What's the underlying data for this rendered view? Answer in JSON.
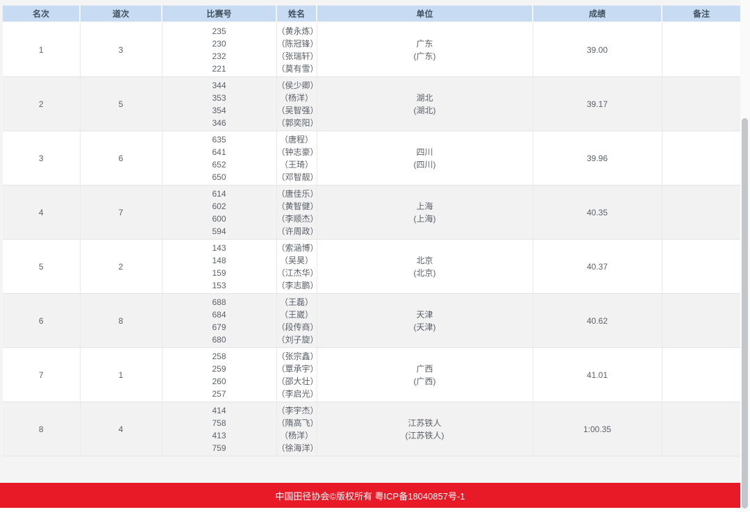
{
  "table": {
    "columns": [
      {
        "label": "名次"
      },
      {
        "label": "道次"
      },
      {
        "label": "比赛号"
      },
      {
        "label": "姓名"
      },
      {
        "label": "单位"
      },
      {
        "label": "成绩"
      },
      {
        "label": "备注"
      }
    ],
    "rows": [
      {
        "rank": "1",
        "lane": "3",
        "bibs": [
          "235",
          "230",
          "232",
          "221"
        ],
        "names": [
          "（黄永炼）",
          "（陈冠锋）",
          "（张瑞轩）",
          "（莫有雪）"
        ],
        "team_line1": "广东",
        "team_line2": "(广东)",
        "result": "39.00",
        "remark": ""
      },
      {
        "rank": "2",
        "lane": "5",
        "bibs": [
          "344",
          "353",
          "354",
          "346"
        ],
        "names": [
          "（侯少卿）",
          "（杨洋）",
          "（吴智强）",
          "（郭奕阳）"
        ],
        "team_line1": "湖北",
        "team_line2": "(湖北)",
        "result": "39.17",
        "remark": ""
      },
      {
        "rank": "3",
        "lane": "6",
        "bibs": [
          "635",
          "641",
          "652",
          "650"
        ],
        "names": [
          "（唐程）",
          "（钟志豪）",
          "（王琦）",
          "（邓智靓）"
        ],
        "team_line1": "四川",
        "team_line2": "(四川)",
        "result": "39.96",
        "remark": ""
      },
      {
        "rank": "4",
        "lane": "7",
        "bibs": [
          "614",
          "602",
          "600",
          "594"
        ],
        "names": [
          "（唐佳乐）",
          "（黄智健）",
          "（李顺杰）",
          "（许周政）"
        ],
        "team_line1": "上海",
        "team_line2": "(上海)",
        "result": "40.35",
        "remark": ""
      },
      {
        "rank": "5",
        "lane": "2",
        "bibs": [
          "143",
          "148",
          "159",
          "153"
        ],
        "names": [
          "（索涵博）",
          "（吴昊）",
          "（江杰华）",
          "（李志鹏）"
        ],
        "team_line1": "北京",
        "team_line2": "(北京)",
        "result": "40.37",
        "remark": ""
      },
      {
        "rank": "6",
        "lane": "8",
        "bibs": [
          "688",
          "684",
          "679",
          "680"
        ],
        "names": [
          "（王磊）",
          "（王崴）",
          "（段传商）",
          "（刘子旋）"
        ],
        "team_line1": "天津",
        "team_line2": "(天津)",
        "result": "40.62",
        "remark": ""
      },
      {
        "rank": "7",
        "lane": "1",
        "bibs": [
          "258",
          "259",
          "260",
          "257"
        ],
        "names": [
          "（张宗鑫）",
          "（覃承宇）",
          "（邵大壮）",
          "（李启光）"
        ],
        "team_line1": "广西",
        "team_line2": "(广西)",
        "result": "41.01",
        "remark": ""
      },
      {
        "rank": "8",
        "lane": "4",
        "bibs": [
          "414",
          "758",
          "413",
          "759"
        ],
        "names": [
          "（李宇杰）",
          "（隋高飞）",
          "（杨洋）",
          "（徐海洋）"
        ],
        "team_line1": "江苏铁人",
        "team_line2": "(江苏铁人)",
        "result": "1:00.35",
        "remark": ""
      }
    ]
  },
  "footer": {
    "copyright": "中国田径协会©版权所有 粤ICP备18040857号-1"
  },
  "colors": {
    "header_bg": "#c7dcf3",
    "row_alt_bg": "#f2f2f2",
    "footer_bg": "#e81a28",
    "body_text": "#5a6069"
  }
}
